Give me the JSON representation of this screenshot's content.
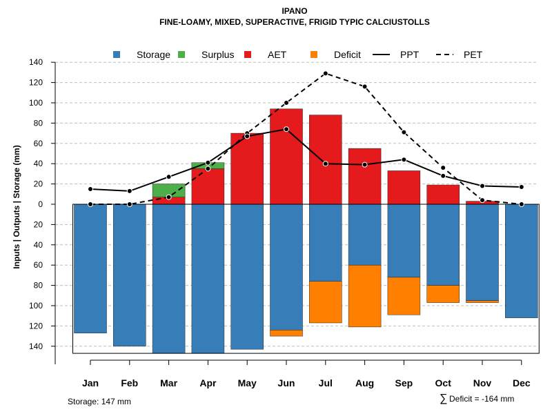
{
  "chart_data": {
    "type": "bar",
    "title": "IPANO",
    "subtitle": "FINE-LOAMY, MIXED, SUPERACTIVE, FRIGID TYPIC CALCIUSTOLLS",
    "ylabel": "Inputs | Outputs | Storage    (mm)",
    "ylim": [
      -147,
      140
    ],
    "y_ticks": [
      140,
      120,
      100,
      80,
      60,
      40,
      20,
      0,
      -20,
      -40,
      -60,
      -80,
      -100,
      -120,
      -140
    ],
    "grid": true,
    "categories": [
      "Jan",
      "Feb",
      "Mar",
      "Apr",
      "May",
      "Jun",
      "Jul",
      "Aug",
      "Sep",
      "Oct",
      "Nov",
      "Dec"
    ],
    "legend": {
      "position": "top",
      "entries": [
        {
          "label": "Storage",
          "kind": "box",
          "color": "#377eb8"
        },
        {
          "label": "Surplus",
          "kind": "box",
          "color": "#4daf4a"
        },
        {
          "label": "AET",
          "kind": "box",
          "color": "#e41a1c"
        },
        {
          "label": "Deficit",
          "kind": "box",
          "color": "#ff7f00"
        },
        {
          "label": "PPT",
          "kind": "solid-line",
          "color": "#000000"
        },
        {
          "label": "PET",
          "kind": "dashed-line",
          "color": "#000000"
        }
      ]
    },
    "series": [
      {
        "name": "Storage",
        "color": "#377eb8",
        "values": [
          127,
          140,
          147,
          147,
          143,
          124,
          76,
          60,
          72,
          80,
          95,
          112
        ]
      },
      {
        "name": "Surplus",
        "color": "#4daf4a",
        "values": [
          0,
          0,
          13,
          6,
          0,
          0,
          0,
          0,
          0,
          0,
          0,
          0
        ]
      },
      {
        "name": "AET",
        "color": "#e41a1c",
        "values": [
          0,
          0,
          7,
          35,
          70,
          94,
          88,
          55,
          33,
          19,
          3,
          0
        ]
      },
      {
        "name": "Deficit",
        "color": "#ff7f00",
        "values": [
          0,
          0,
          0,
          0,
          0,
          6,
          41,
          61,
          37,
          17,
          2,
          0
        ]
      },
      {
        "name": "PPT",
        "color": "#000000",
        "style": "solid",
        "values": [
          15,
          13,
          27,
          41,
          67,
          74,
          40,
          39,
          44,
          28,
          18,
          17
        ]
      },
      {
        "name": "PET",
        "color": "#000000",
        "style": "dashed",
        "values": [
          0,
          0,
          7,
          35,
          70,
          100,
          129,
          116,
          71,
          36,
          4,
          0
        ]
      }
    ],
    "annotations": {
      "storage": "Storage: 147 mm",
      "deficit_symbol": "∑",
      "deficit": "Deficit = -164 mm"
    }
  }
}
